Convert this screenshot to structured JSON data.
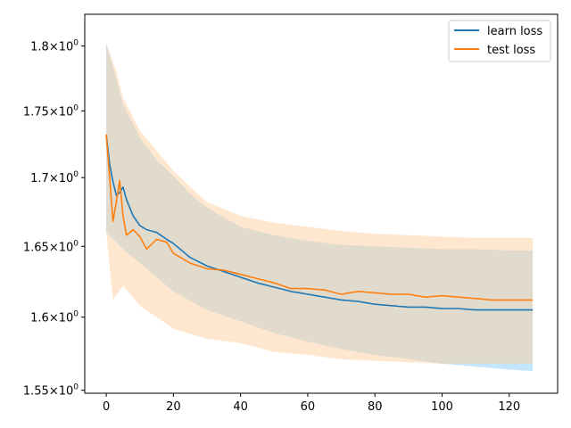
{
  "chart_data": {
    "type": "line",
    "title": "",
    "xlabel": "",
    "ylabel": "",
    "xlim": [
      -6.4,
      134.4
    ],
    "ylim": [
      1.548,
      1.825
    ],
    "yscale": "log",
    "grid": false,
    "legend_position": "top-right",
    "x_ticks": [
      0,
      20,
      40,
      60,
      80,
      100,
      120
    ],
    "x_tick_labels": [
      "0",
      "20",
      "40",
      "60",
      "80",
      "100",
      "120"
    ],
    "y_ticks": [
      1.55,
      1.6,
      1.65,
      1.7,
      1.75,
      1.8
    ],
    "y_tick_labels": [
      {
        "mantissa": "1.55",
        "times": "×",
        "base": "10",
        "exp": "0"
      },
      {
        "mantissa": "1.6",
        "times": "×",
        "base": "10",
        "exp": "0"
      },
      {
        "mantissa": "1.65",
        "times": "×",
        "base": "10",
        "exp": "0"
      },
      {
        "mantissa": "1.7",
        "times": "×",
        "base": "10",
        "exp": "0"
      },
      {
        "mantissa": "1.75",
        "times": "×",
        "base": "10",
        "exp": "0"
      },
      {
        "mantissa": "1.8",
        "times": "×",
        "base": "10",
        "exp": "0"
      }
    ],
    "series": [
      {
        "name": "learn loss",
        "color": "#1f77b4",
        "band_color": "#87cefa",
        "points": [
          [
            0,
            1.732
          ],
          [
            1,
            1.71
          ],
          [
            2,
            1.697
          ],
          [
            3,
            1.687
          ],
          [
            4,
            1.689
          ],
          [
            5,
            1.693
          ],
          [
            6,
            1.684
          ],
          [
            8,
            1.672
          ],
          [
            10,
            1.665
          ],
          [
            12,
            1.662
          ],
          [
            15,
            1.66
          ],
          [
            18,
            1.655
          ],
          [
            20,
            1.652
          ],
          [
            25,
            1.642
          ],
          [
            30,
            1.636
          ],
          [
            35,
            1.632
          ],
          [
            40,
            1.628
          ],
          [
            45,
            1.624
          ],
          [
            50,
            1.621
          ],
          [
            55,
            1.618
          ],
          [
            60,
            1.616
          ],
          [
            65,
            1.614
          ],
          [
            70,
            1.612
          ],
          [
            75,
            1.611
          ],
          [
            80,
            1.609
          ],
          [
            85,
            1.608
          ],
          [
            90,
            1.607
          ],
          [
            95,
            1.607
          ],
          [
            100,
            1.606
          ],
          [
            105,
            1.606
          ],
          [
            110,
            1.605
          ],
          [
            115,
            1.605
          ],
          [
            120,
            1.605
          ],
          [
            127,
            1.605
          ]
        ],
        "lower": [
          [
            0,
            1.66
          ],
          [
            5,
            1.648
          ],
          [
            10,
            1.638
          ],
          [
            15,
            1.628
          ],
          [
            20,
            1.618
          ],
          [
            30,
            1.605
          ],
          [
            40,
            1.597
          ],
          [
            50,
            1.589
          ],
          [
            60,
            1.583
          ],
          [
            70,
            1.578
          ],
          [
            80,
            1.574
          ],
          [
            90,
            1.571
          ],
          [
            100,
            1.568
          ],
          [
            110,
            1.566
          ],
          [
            120,
            1.564
          ],
          [
            127,
            1.563
          ]
        ],
        "upper": [
          [
            0,
            1.802
          ],
          [
            3,
            1.775
          ],
          [
            5,
            1.755
          ],
          [
            10,
            1.73
          ],
          [
            15,
            1.713
          ],
          [
            20,
            1.701
          ],
          [
            25,
            1.688
          ],
          [
            30,
            1.678
          ],
          [
            40,
            1.664
          ],
          [
            50,
            1.658
          ],
          [
            60,
            1.654
          ],
          [
            70,
            1.651
          ],
          [
            80,
            1.65
          ],
          [
            90,
            1.649
          ],
          [
            100,
            1.648
          ],
          [
            110,
            1.648
          ],
          [
            120,
            1.647
          ],
          [
            127,
            1.647
          ]
        ]
      },
      {
        "name": "test loss",
        "color": "#ff7f0e",
        "band_color": "#ffd0a0",
        "points": [
          [
            0,
            1.732
          ],
          [
            1,
            1.7
          ],
          [
            2,
            1.668
          ],
          [
            3,
            1.682
          ],
          [
            4,
            1.698
          ],
          [
            5,
            1.672
          ],
          [
            6,
            1.658
          ],
          [
            8,
            1.662
          ],
          [
            10,
            1.657
          ],
          [
            12,
            1.648
          ],
          [
            15,
            1.655
          ],
          [
            18,
            1.653
          ],
          [
            20,
            1.645
          ],
          [
            25,
            1.638
          ],
          [
            30,
            1.634
          ],
          [
            35,
            1.633
          ],
          [
            40,
            1.63
          ],
          [
            45,
            1.627
          ],
          [
            50,
            1.624
          ],
          [
            55,
            1.62
          ],
          [
            60,
            1.62
          ],
          [
            65,
            1.619
          ],
          [
            70,
            1.616
          ],
          [
            75,
            1.618
          ],
          [
            80,
            1.617
          ],
          [
            85,
            1.616
          ],
          [
            90,
            1.616
          ],
          [
            95,
            1.614
          ],
          [
            100,
            1.615
          ],
          [
            105,
            1.614
          ],
          [
            110,
            1.613
          ],
          [
            115,
            1.612
          ],
          [
            120,
            1.612
          ],
          [
            127,
            1.612
          ]
        ],
        "lower": [
          [
            0,
            1.66
          ],
          [
            2,
            1.612
          ],
          [
            5,
            1.622
          ],
          [
            10,
            1.608
          ],
          [
            15,
            1.6
          ],
          [
            20,
            1.592
          ],
          [
            30,
            1.585
          ],
          [
            40,
            1.582
          ],
          [
            50,
            1.576
          ],
          [
            60,
            1.574
          ],
          [
            70,
            1.571
          ],
          [
            80,
            1.57
          ],
          [
            90,
            1.569
          ],
          [
            100,
            1.568
          ],
          [
            110,
            1.568
          ],
          [
            120,
            1.568
          ],
          [
            127,
            1.568
          ]
        ],
        "upper": [
          [
            0,
            1.802
          ],
          [
            3,
            1.78
          ],
          [
            5,
            1.76
          ],
          [
            10,
            1.735
          ],
          [
            15,
            1.72
          ],
          [
            20,
            1.705
          ],
          [
            25,
            1.693
          ],
          [
            30,
            1.682
          ],
          [
            40,
            1.672
          ],
          [
            50,
            1.667
          ],
          [
            60,
            1.664
          ],
          [
            70,
            1.661
          ],
          [
            80,
            1.659
          ],
          [
            90,
            1.658
          ],
          [
            100,
            1.657
          ],
          [
            110,
            1.656
          ],
          [
            120,
            1.656
          ],
          [
            127,
            1.656
          ]
        ]
      }
    ]
  }
}
